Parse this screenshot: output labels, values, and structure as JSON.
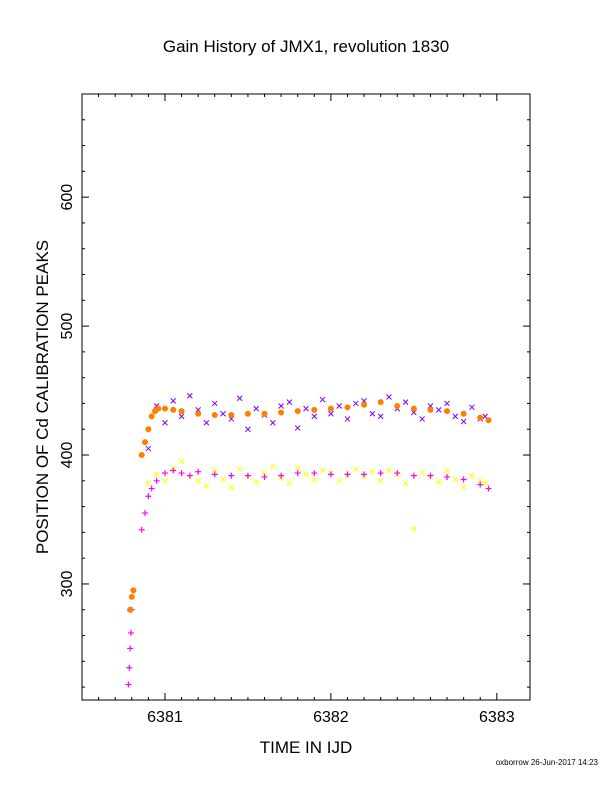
{
  "chart_data": {
    "type": "scatter",
    "title": "Gain History of JMX1, revolution 1830",
    "xlabel": "TIME IN IJD",
    "ylabel": "POSITION OF Cd CALIBRATION PEAKS",
    "xlim": [
      6380.5,
      6383.2
    ],
    "ylim": [
      210,
      680
    ],
    "xticks": [
      "6381",
      "6382",
      "6383"
    ],
    "yticks": [
      "300",
      "400",
      "500",
      "600"
    ],
    "grid": false,
    "series": [
      {
        "marker": "x",
        "color": "#7f00ff",
        "x": [
          6380.9,
          6380.95,
          6381.0,
          6381.05,
          6381.1,
          6381.15,
          6381.2,
          6381.25,
          6381.3,
          6381.35,
          6381.4,
          6381.45,
          6381.5,
          6381.55,
          6381.6,
          6381.65,
          6381.7,
          6381.75,
          6381.8,
          6381.85,
          6381.9,
          6381.95,
          6382.0,
          6382.05,
          6382.1,
          6382.15,
          6382.2,
          6382.25,
          6382.3,
          6382.35,
          6382.4,
          6382.45,
          6382.5,
          6382.55,
          6382.6,
          6382.65,
          6382.7,
          6382.75,
          6382.8,
          6382.85,
          6382.9,
          6382.93
        ],
        "y": [
          405,
          438,
          425,
          442,
          430,
          446,
          435,
          425,
          440,
          432,
          428,
          444,
          420,
          436,
          431,
          425,
          438,
          441,
          421,
          436,
          430,
          443,
          432,
          438,
          428,
          440,
          442,
          432,
          430,
          445,
          436,
          441,
          433,
          428,
          438,
          435,
          440,
          430,
          426,
          437,
          428,
          430
        ]
      },
      {
        "marker": "x",
        "color": "#ffff00",
        "x": [
          6380.9,
          6380.95,
          6381.0,
          6381.05,
          6381.1,
          6381.15,
          6381.2,
          6381.25,
          6381.3,
          6381.35,
          6381.4,
          6381.45,
          6381.5,
          6381.55,
          6381.6,
          6381.65,
          6381.7,
          6381.75,
          6381.8,
          6381.85,
          6381.9,
          6381.95,
          6382.0,
          6382.05,
          6382.1,
          6382.15,
          6382.2,
          6382.25,
          6382.3,
          6382.35,
          6382.4,
          6382.45,
          6382.5,
          6382.55,
          6382.6,
          6382.65,
          6382.7,
          6382.75,
          6382.8,
          6382.85,
          6382.9,
          6382.93
        ],
        "y": [
          378,
          385,
          380,
          390,
          395,
          383,
          380,
          376,
          388,
          381,
          375,
          389,
          383,
          379,
          386,
          391,
          382,
          378,
          390,
          385,
          381,
          388,
          386,
          380,
          384,
          389,
          383,
          387,
          380,
          388,
          385,
          378,
          343,
          386,
          383,
          379,
          388,
          381,
          375,
          384,
          380,
          378
        ]
      },
      {
        "marker": "+",
        "color": "#ff00ff",
        "x": [
          6380.78,
          6380.785,
          6380.79,
          6380.795,
          6380.8,
          6380.81,
          6380.86,
          6380.88,
          6380.9,
          6380.92,
          6380.95,
          6381.0,
          6381.05,
          6381.1,
          6381.15,
          6381.2,
          6381.3,
          6381.4,
          6381.5,
          6381.6,
          6381.7,
          6381.8,
          6381.9,
          6382.0,
          6382.1,
          6382.2,
          6382.3,
          6382.4,
          6382.5,
          6382.6,
          6382.7,
          6382.8,
          6382.9,
          6382.95
        ],
        "y": [
          222,
          235,
          250,
          262,
          280,
          295,
          342,
          355,
          368,
          374,
          380,
          386,
          388,
          386,
          384,
          387,
          385,
          384,
          384,
          383,
          384,
          386,
          386,
          385,
          385,
          385,
          386,
          386,
          384,
          384,
          383,
          381,
          377,
          374
        ]
      },
      {
        "marker": "o",
        "color": "#ff7f00",
        "x": [
          6380.79,
          6380.8,
          6380.81,
          6380.86,
          6380.88,
          6380.9,
          6380.92,
          6380.94,
          6380.96,
          6381.0,
          6381.05,
          6381.1,
          6381.2,
          6381.3,
          6381.4,
          6381.5,
          6381.6,
          6381.7,
          6381.8,
          6381.9,
          6382.0,
          6382.1,
          6382.2,
          6382.3,
          6382.4,
          6382.5,
          6382.6,
          6382.7,
          6382.8,
          6382.9,
          6382.95
        ],
        "y": [
          280,
          290,
          295,
          400,
          410,
          420,
          430,
          434,
          436,
          436,
          435,
          434,
          432,
          431,
          431,
          432,
          432,
          433,
          434,
          435,
          436,
          437,
          439,
          441,
          438,
          436,
          435,
          434,
          432,
          429,
          427
        ]
      }
    ]
  },
  "footer": "oxborrow 26-Jun-2017 14:23"
}
